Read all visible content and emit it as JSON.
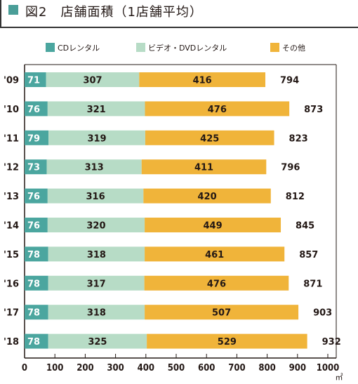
{
  "header": {
    "title": "図2　店舗面積（1店舗平均）"
  },
  "colors": {
    "cd": "#4ba69f",
    "video": "#b7dcc6",
    "other": "#f0b43a",
    "title_square": "#4a9e98"
  },
  "chart_data": {
    "type": "bar",
    "orientation": "horizontal",
    "stacked": true,
    "categories": [
      "'09",
      "'10",
      "'11",
      "'12",
      "'13",
      "'14",
      "'15",
      "'16",
      "'17",
      "'18"
    ],
    "series": [
      {
        "name": "CDレンタル",
        "values": [
          71,
          76,
          79,
          73,
          76,
          76,
          78,
          78,
          78,
          78
        ]
      },
      {
        "name": "ビデオ・DVDレンタル",
        "values": [
          307,
          321,
          319,
          313,
          316,
          320,
          318,
          317,
          318,
          325
        ]
      },
      {
        "name": "その他",
        "values": [
          416,
          476,
          425,
          411,
          420,
          449,
          461,
          476,
          507,
          529
        ]
      }
    ],
    "totals": [
      794,
      873,
      823,
      796,
      812,
      845,
      857,
      871,
      903,
      932
    ],
    "xlim": [
      0,
      1000
    ],
    "xticks": [
      0,
      100,
      200,
      300,
      400,
      500,
      600,
      700,
      800,
      900,
      1000
    ],
    "unit": "㎡",
    "legend_position": "top",
    "grid": false
  }
}
